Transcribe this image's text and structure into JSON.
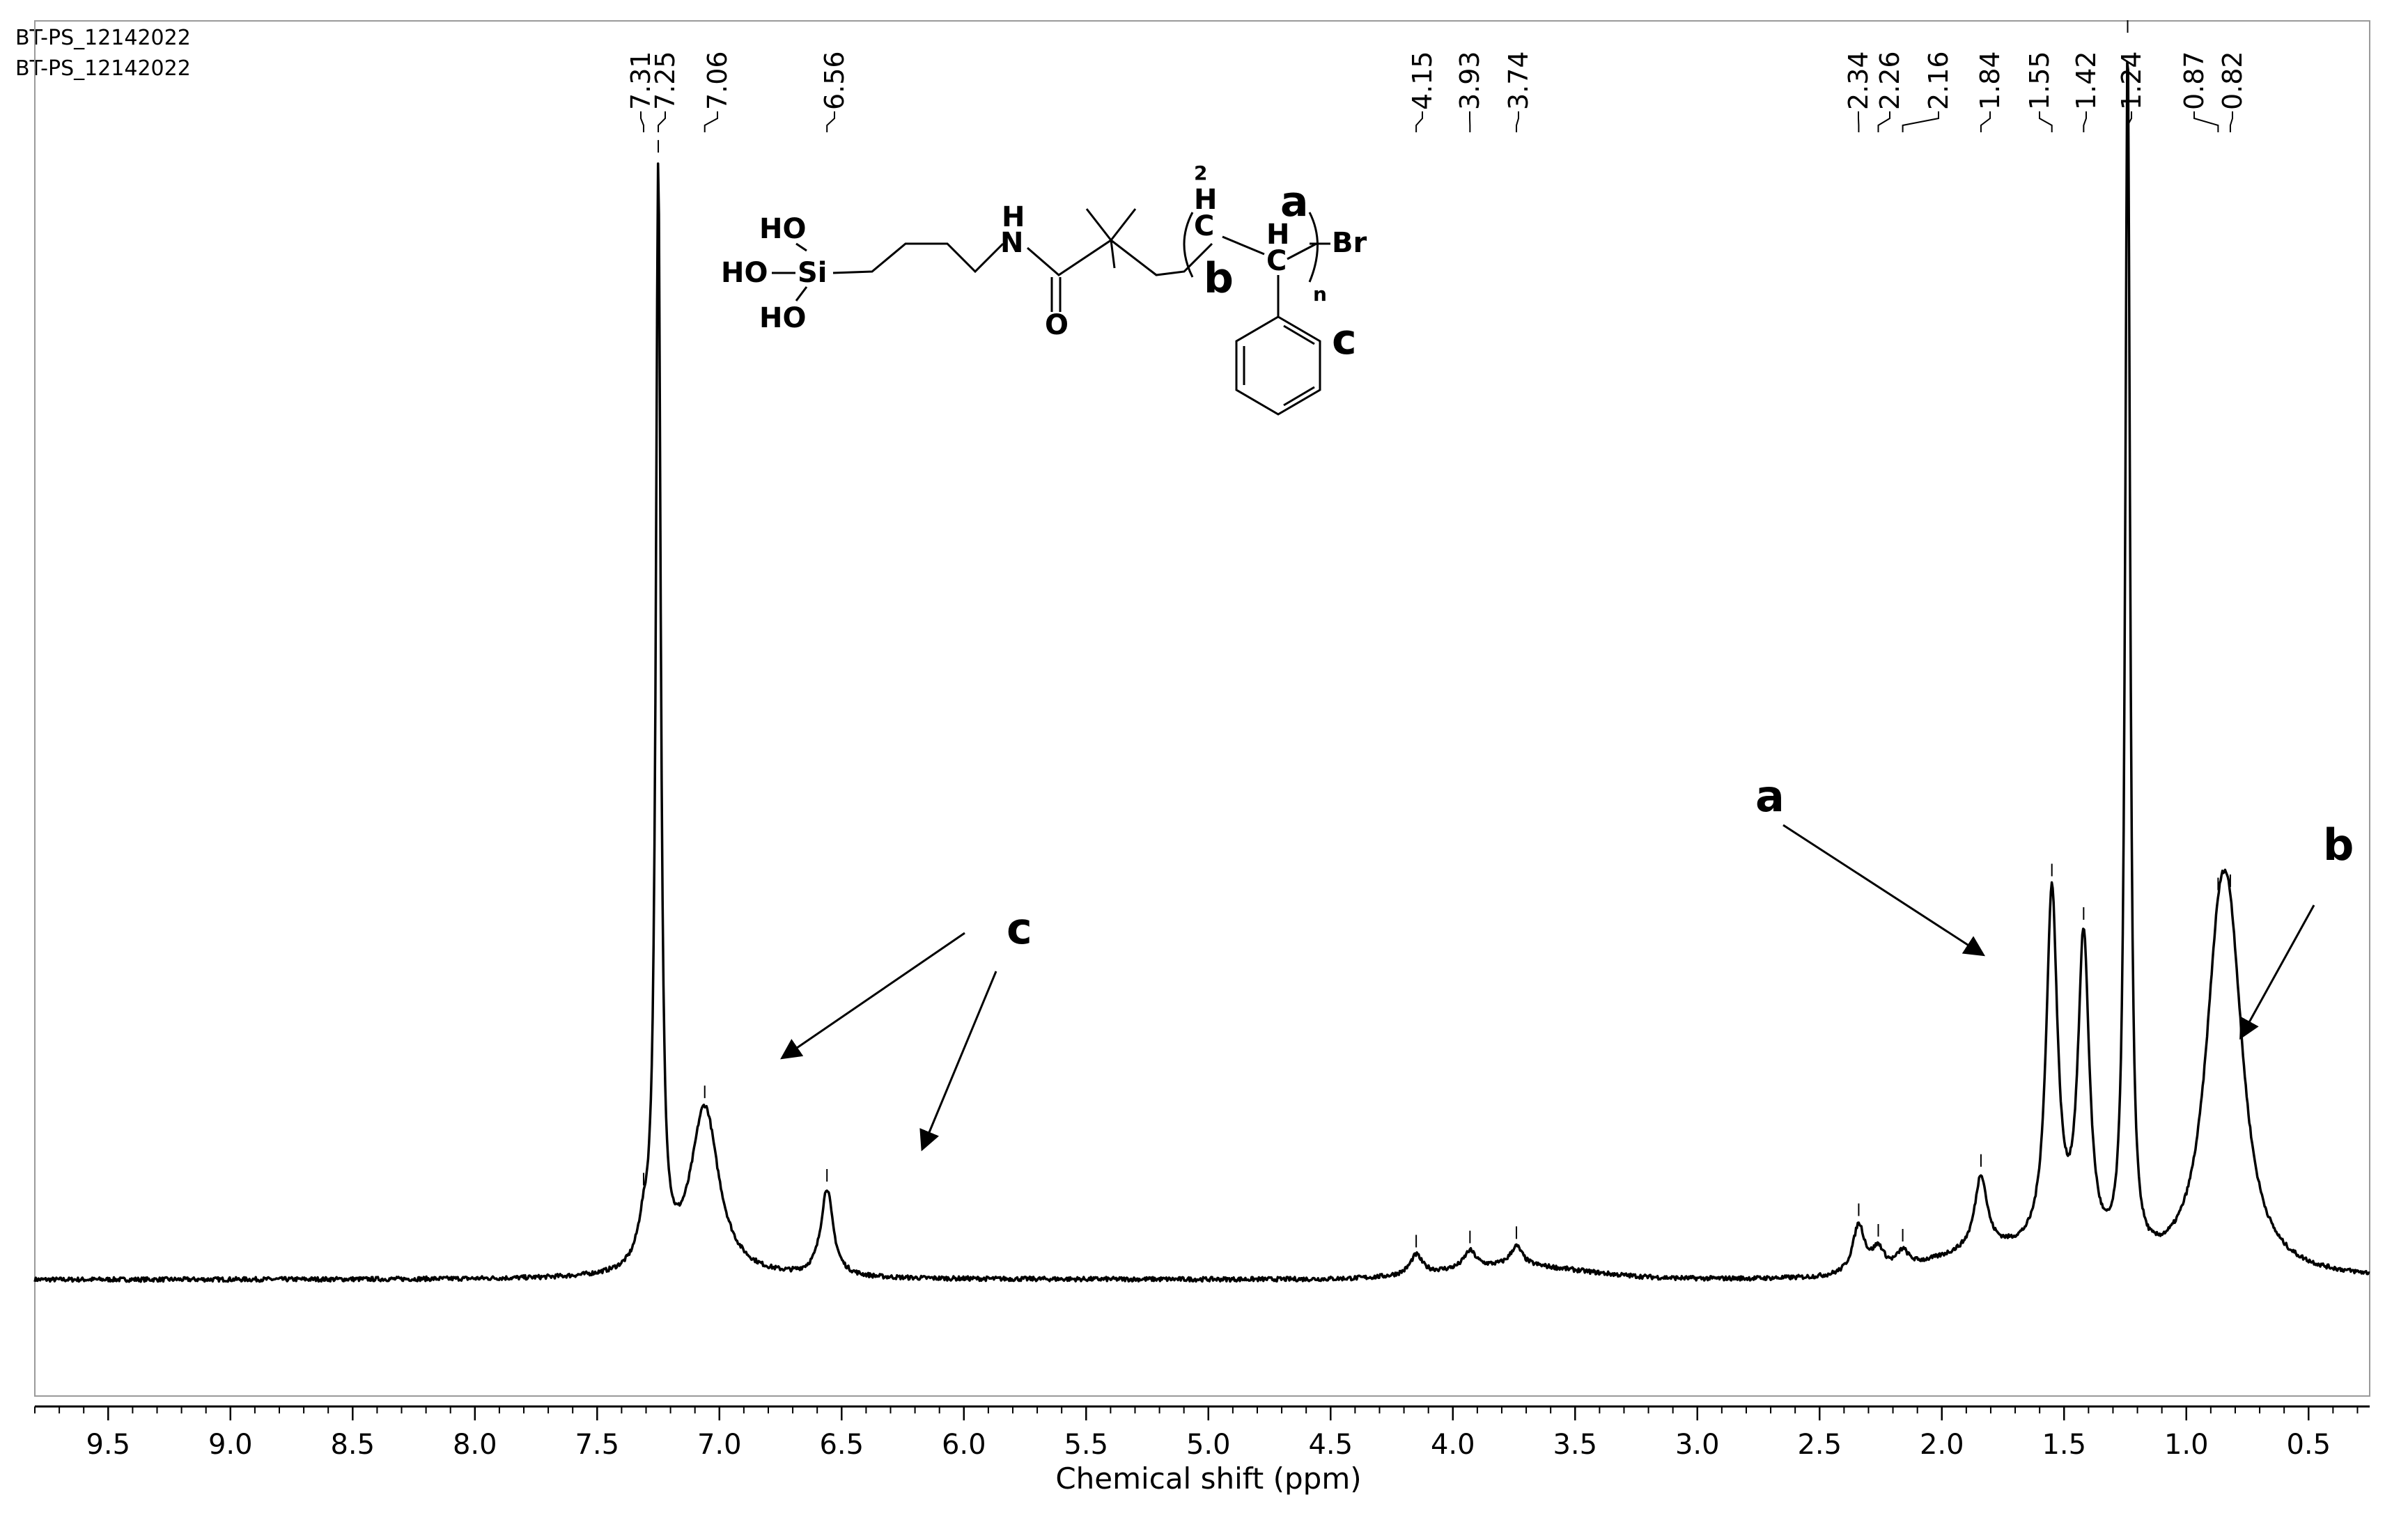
{
  "header": {
    "line1": "BT-PS_12142022",
    "line2": "BT-PS_12142022"
  },
  "chart_data": {
    "type": "line",
    "title": "",
    "xlabel": "Chemical shift (ppm)",
    "ylabel": "",
    "xlim": [
      9.8,
      0.25
    ],
    "x_reversed": true,
    "grid": false,
    "x_ticks": [
      "9.5",
      "9.0",
      "8.5",
      "8.0",
      "7.5",
      "7.0",
      "6.5",
      "6.0",
      "5.5",
      "5.0",
      "4.5",
      "4.0",
      "3.5",
      "3.0",
      "2.5",
      "2.0",
      "1.5",
      "1.0",
      "0.5"
    ],
    "peak_labels": [
      "7.31",
      "7.25",
      "7.06",
      "6.56",
      "4.15",
      "3.93",
      "3.74",
      "2.34",
      "2.26",
      "2.16",
      "1.84",
      "1.55",
      "1.42",
      "1.24",
      "0.87",
      "0.82"
    ],
    "peaks": [
      {
        "x": 7.31,
        "y": 0.03
      },
      {
        "x": 7.25,
        "y": 1.0
      },
      {
        "x": 7.06,
        "y": 0.155
      },
      {
        "x": 6.56,
        "y": 0.08
      },
      {
        "x": 4.15,
        "y": 0.018
      },
      {
        "x": 3.93,
        "y": 0.016
      },
      {
        "x": 3.74,
        "y": 0.018
      },
      {
        "x": 2.34,
        "y": 0.045
      },
      {
        "x": 2.26,
        "y": 0.02
      },
      {
        "x": 2.16,
        "y": 0.015
      },
      {
        "x": 1.84,
        "y": 0.068
      },
      {
        "x": 1.55,
        "y": 0.33
      },
      {
        "x": 1.42,
        "y": 0.29
      },
      {
        "x": 1.24,
        "y": 1.11
      },
      {
        "x": 0.87,
        "y": 0.205
      },
      {
        "x": 0.82,
        "y": 0.215
      }
    ],
    "annotations": [
      {
        "label": "a",
        "target_ppm": 1.8
      },
      {
        "label": "b",
        "target_ppm": 0.82
      },
      {
        "label": "c",
        "target_ppm": 6.8
      },
      {
        "label": "c",
        "target_ppm": 6.2
      }
    ]
  },
  "structure": {
    "atoms": [
      "HO",
      "HO",
      "HO",
      "Si",
      "H",
      "N",
      "O",
      "2",
      "H",
      "C",
      "H",
      "C",
      "Br",
      "n"
    ],
    "labels": [
      "a",
      "b",
      "c"
    ]
  }
}
